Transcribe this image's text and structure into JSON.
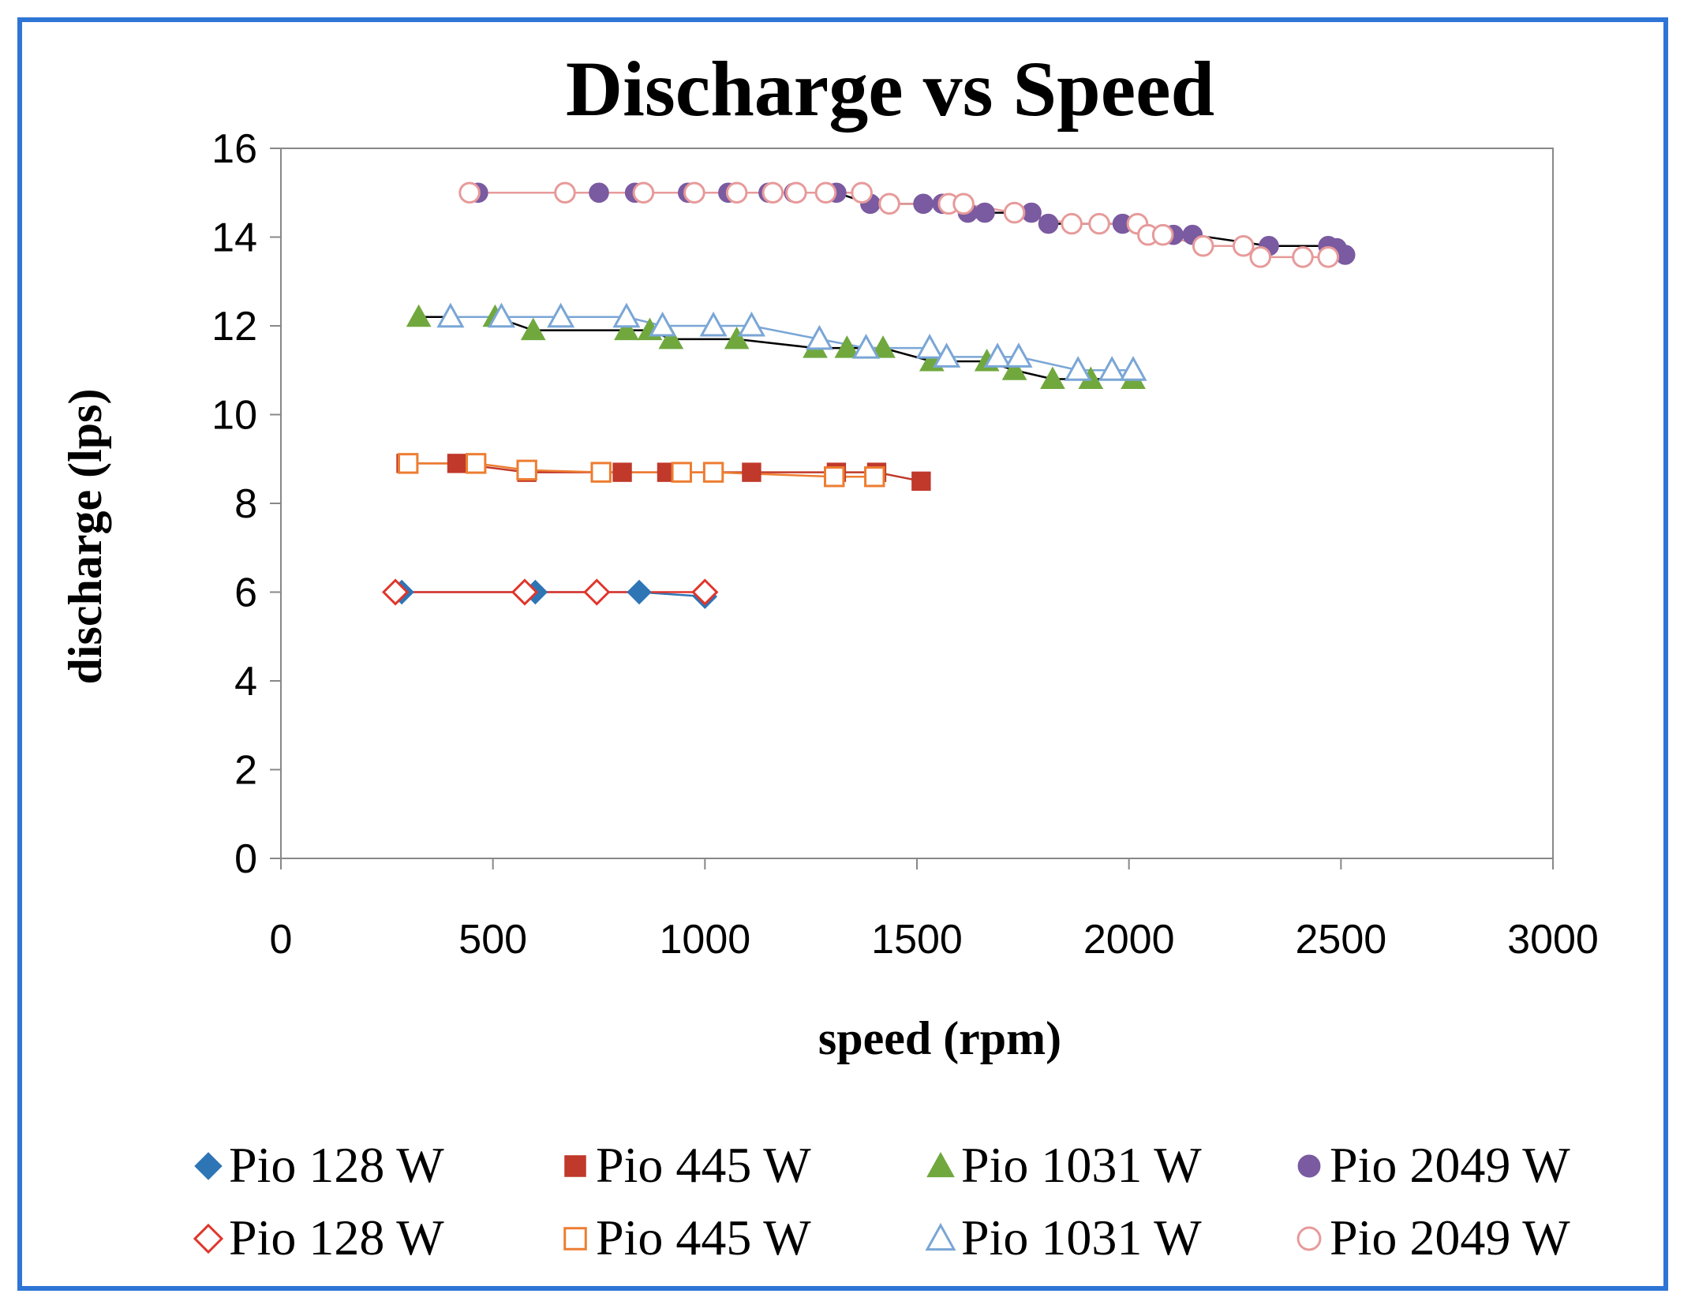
{
  "chart_data": {
    "type": "scatter",
    "title": "Discharge vs Speed",
    "xlabel": "speed (rpm)",
    "ylabel": "discharge (lps)",
    "xlim": [
      0,
      3000
    ],
    "ylim": [
      0,
      16
    ],
    "xticks": [
      0,
      500,
      1000,
      1500,
      2000,
      2500,
      3000
    ],
    "yticks": [
      0,
      2,
      4,
      6,
      8,
      10,
      12,
      14,
      16
    ],
    "grid": false,
    "legend": "bottom",
    "series": [
      {
        "name": "Pio 128 W",
        "marker": "diamond",
        "filled": true,
        "color": "#2e75b6",
        "line_color": "#2e75b6",
        "x": [
          285,
          600,
          845,
          1000
        ],
        "y": [
          6.0,
          6.0,
          6.0,
          5.9
        ]
      },
      {
        "name": "Pio 445 W",
        "marker": "square",
        "filled": true,
        "color": "#c0392b",
        "line_color": "#c0392b",
        "x": [
          295,
          415,
          580,
          805,
          910,
          1110,
          1310,
          1405,
          1510
        ],
        "y": [
          8.9,
          8.9,
          8.7,
          8.7,
          8.7,
          8.7,
          8.7,
          8.7,
          8.5
        ]
      },
      {
        "name": "Pio 1031 W",
        "marker": "triangle",
        "filled": true,
        "color": "#70a83e",
        "line_color": "#000000",
        "x": [
          325,
          505,
          595,
          815,
          870,
          920,
          1075,
          1260,
          1335,
          1420,
          1535,
          1665,
          1730,
          1820,
          1910,
          2010
        ],
        "y": [
          12.2,
          12.2,
          11.9,
          11.9,
          11.9,
          11.7,
          11.7,
          11.5,
          11.5,
          11.5,
          11.2,
          11.2,
          11.0,
          10.8,
          10.8,
          10.8
        ]
      },
      {
        "name": "Pio 2049 W",
        "marker": "circle",
        "filled": true,
        "color": "#7a5aa0",
        "line_color": "#000000",
        "x": [
          465,
          750,
          835,
          960,
          1055,
          1150,
          1210,
          1310,
          1390,
          1515,
          1560,
          1620,
          1660,
          1770,
          1810,
          1865,
          1985,
          2105,
          2150,
          2330,
          2470,
          2490,
          2510
        ],
        "y": [
          15.0,
          15.0,
          15.0,
          15.0,
          15.0,
          15.0,
          15.0,
          15.0,
          14.75,
          14.75,
          14.75,
          14.55,
          14.55,
          14.55,
          14.3,
          14.3,
          14.3,
          14.05,
          14.05,
          13.8,
          13.8,
          13.75,
          13.6
        ]
      },
      {
        "name": "Pio 128 W",
        "marker": "diamond",
        "filled": false,
        "color": "#e0352b",
        "line_color": "#e0352b",
        "x": [
          270,
          575,
          745,
          1000
        ],
        "y": [
          6.0,
          6.0,
          6.0,
          6.0
        ]
      },
      {
        "name": "Pio 445 W",
        "marker": "square",
        "filled": false,
        "color": "#ed7d31",
        "line_color": "#ed7d31",
        "x": [
          300,
          460,
          580,
          755,
          945,
          1020,
          1305,
          1400
        ],
        "y": [
          8.9,
          8.9,
          8.75,
          8.7,
          8.7,
          8.7,
          8.6,
          8.6
        ]
      },
      {
        "name": "Pio 1031 W",
        "marker": "triangle",
        "filled": false,
        "color": "#7aa6d6",
        "line_color": "#7aa6d6",
        "x": [
          400,
          520,
          660,
          815,
          900,
          1020,
          1110,
          1270,
          1380,
          1530,
          1570,
          1690,
          1740,
          1880,
          1960,
          2010
        ],
        "y": [
          12.2,
          12.2,
          12.2,
          12.2,
          12.0,
          12.0,
          12.0,
          11.7,
          11.5,
          11.5,
          11.3,
          11.3,
          11.3,
          11.0,
          11.0,
          11.0
        ]
      },
      {
        "name": "Pio 2049 W",
        "marker": "circle",
        "filled": false,
        "color": "#e79a9a",
        "line_color": "#e79a9a",
        "x": [
          445,
          670,
          855,
          975,
          1075,
          1160,
          1215,
          1285,
          1370,
          1435,
          1575,
          1610,
          1730,
          1865,
          1930,
          2020,
          2045,
          2080,
          2175,
          2270,
          2310,
          2410,
          2470
        ],
        "y": [
          15.0,
          15.0,
          15.0,
          15.0,
          15.0,
          15.0,
          15.0,
          15.0,
          15.0,
          14.75,
          14.75,
          14.75,
          14.55,
          14.3,
          14.3,
          14.3,
          14.05,
          14.05,
          13.8,
          13.8,
          13.55,
          13.55,
          13.55
        ]
      }
    ]
  }
}
